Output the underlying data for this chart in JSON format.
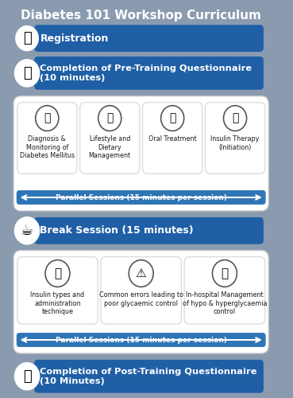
{
  "title": "Diabetes 101 Workshop Curriculum",
  "background_color": "#8a9bb0",
  "blue_dark": "#1f5fa6",
  "blue_mid": "#2e75b6",
  "blue_light": "#4a90d9",
  "white": "#ffffff",
  "light_gray": "#f0f0f0",
  "text_dark": "#1a1a1a",
  "text_white": "#ffffff",
  "box1_text": "Registration",
  "box2_text": "Completion of Pre-Training Questionnaire\n(10 minutes)",
  "parallel1_labels": [
    "Diagnosis &\nMonitoring of\nDiabetes Mellitus",
    "Lifestyle and\nDietary\nManagement",
    "Oral Treatment",
    "Insulin Therapy\n(Initiation)"
  ],
  "parallel1_arrow": "Parallel Sessions (15 minutes per session)",
  "break_text": "Break Session (15 minutes)",
  "parallel2_labels": [
    "Insulin types and\nadministration\ntechnique",
    "Common errors leading to\npoor glycaemic control",
    "In-hospital Management\nof hypo & hyperglycaemia\ncontrol"
  ],
  "parallel2_arrow": "Parallel Sessions (15 minutes per session)",
  "box_final_text": "Completion of Post-Training Questionnaire\n(10 Minutes)"
}
